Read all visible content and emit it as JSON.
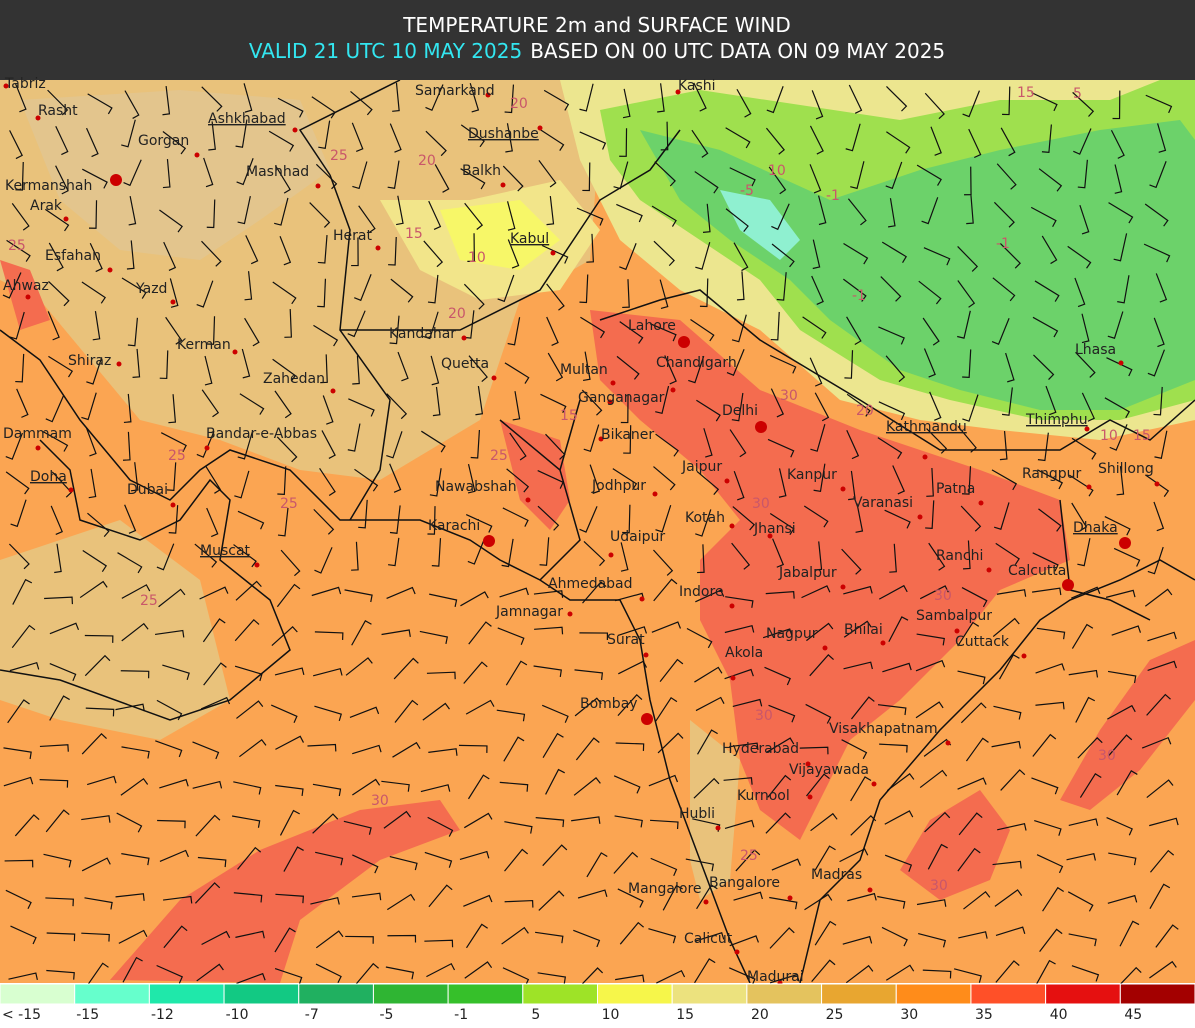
{
  "header": {
    "title": "TEMPERATURE 2m and SURFACE WIND",
    "valid": "VALID 21 UTC 10 MAY 2025",
    "based": "BASED ON 00 UTC DATA ON 09 MAY 2025"
  },
  "cities": [
    {
      "name": "Tabriz"
    },
    {
      "name": "Rasht"
    },
    {
      "name": "Gorgan"
    },
    {
      "name": "Ashkhabad",
      "capital": true
    },
    {
      "name": "Samarkand"
    },
    {
      "name": "Dushanbe",
      "capital": true
    },
    {
      "name": "Kashi"
    },
    {
      "name": "Kermanshah"
    },
    {
      "name": "Mashhad"
    },
    {
      "name": "Balkh"
    },
    {
      "name": "Arak"
    },
    {
      "name": "Herat"
    },
    {
      "name": "Kabul",
      "capital": true
    },
    {
      "name": "Esfahan"
    },
    {
      "name": "Ahwaz"
    },
    {
      "name": "Yazd"
    },
    {
      "name": "Kandahar"
    },
    {
      "name": "Lahore"
    },
    {
      "name": "Kerman"
    },
    {
      "name": "Shiraz"
    },
    {
      "name": "Quetta"
    },
    {
      "name": "Multan"
    },
    {
      "name": "Chandigarh"
    },
    {
      "name": "Zahedan"
    },
    {
      "name": "Ganganagar"
    },
    {
      "name": "Delhi"
    },
    {
      "name": "Lhasa"
    },
    {
      "name": "Dammam"
    },
    {
      "name": "Bandar-e-Abbas"
    },
    {
      "name": "Bikaner"
    },
    {
      "name": "Kathmandu",
      "capital": true
    },
    {
      "name": "Thimphu",
      "capital": true
    },
    {
      "name": "Doha",
      "capital": true
    },
    {
      "name": "Jaipur"
    },
    {
      "name": "Kanpur"
    },
    {
      "name": "Shillong"
    },
    {
      "name": "Rangpur"
    },
    {
      "name": "Dubai"
    },
    {
      "name": "Nawabshah"
    },
    {
      "name": "Jodhpur"
    },
    {
      "name": "Patna"
    },
    {
      "name": "Varanasi"
    },
    {
      "name": "Kotah"
    },
    {
      "name": "Jhansi"
    },
    {
      "name": "Karachi"
    },
    {
      "name": "Dhaka",
      "capital": true
    },
    {
      "name": "Muscat",
      "capital": true
    },
    {
      "name": "Udaipur"
    },
    {
      "name": "Ranchi"
    },
    {
      "name": "Calcutta"
    },
    {
      "name": "Jabalpur"
    },
    {
      "name": "Ahmedabad"
    },
    {
      "name": "Indore"
    },
    {
      "name": "Jamnagar"
    },
    {
      "name": "Sambalpur"
    },
    {
      "name": "Surat"
    },
    {
      "name": "Nagpur"
    },
    {
      "name": "Bhilai"
    },
    {
      "name": "Cuttack"
    },
    {
      "name": "Akola"
    },
    {
      "name": "Bombay"
    },
    {
      "name": "Visakhapatnam"
    },
    {
      "name": "Hyderabad"
    },
    {
      "name": "Vijayawada"
    },
    {
      "name": "Kurnool"
    },
    {
      "name": "Hubli"
    },
    {
      "name": "Madras"
    },
    {
      "name": "Bangalore"
    },
    {
      "name": "Mangalore"
    },
    {
      "name": "Calicut"
    },
    {
      "name": "Madurai"
    }
  ],
  "contour_labels": [
    25,
    20,
    25,
    20,
    15,
    10,
    20,
    15,
    25,
    25,
    30,
    25,
    30,
    30,
    30,
    30,
    25,
    -5,
    -1,
    10,
    -1,
    -1,
    5,
    15,
    10,
    15,
    20,
    30,
    30,
    25
  ],
  "legend": {
    "labels": [
      "< -15",
      "-15",
      "-12",
      "-10",
      "-7",
      "-5",
      "-1",
      "5",
      "10",
      "15",
      "20",
      "25",
      "30",
      "35",
      "40",
      "45"
    ],
    "colors": [
      "#d8ffd0",
      "#66ffcc",
      "#1fe8aa",
      "#12c983",
      "#20b060",
      "#2fb533",
      "#36c02a",
      "#9ee327",
      "#f6f64a",
      "#ece27e",
      "#e4c35e",
      "#e8a630",
      "#ff8c1a",
      "#ff5028",
      "#e51010",
      "#a30000"
    ]
  }
}
